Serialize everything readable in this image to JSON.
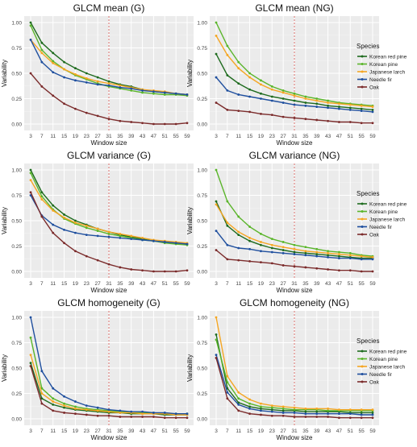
{
  "figure": {
    "legend_title": "Species",
    "species": [
      {
        "name": "Korean red pine",
        "color": "#1e6b1e"
      },
      {
        "name": "Korean pine",
        "color": "#5ab52a"
      },
      {
        "name": "Japanese larch",
        "color": "#f5a623"
      },
      {
        "name": "Needle fir",
        "color": "#1f4f9e"
      },
      {
        "name": "Oak",
        "color": "#7b2b2b"
      }
    ],
    "reference_line_x": 31,
    "reference_line_color": "#d9534f",
    "panel_background": "#ebebeb"
  },
  "chart_data": [
    {
      "type": "line",
      "title": "GLCM mean (G)",
      "xlabel": "Window size",
      "ylabel": "Variability",
      "x": [
        3,
        7,
        11,
        15,
        19,
        23,
        27,
        31,
        35,
        39,
        43,
        47,
        51,
        55,
        59
      ],
      "xticks": [
        "3",
        "7",
        "11",
        "15",
        "19",
        "23",
        "27",
        "31",
        "35",
        "39",
        "43",
        "47",
        "51",
        "55",
        "59"
      ],
      "yticks": [
        "0.00",
        "0.25",
        "0.50",
        "0.75",
        "1.00"
      ],
      "ylim": [
        0,
        1
      ],
      "grid": true,
      "series": [
        {
          "name": "Korean red pine",
          "values": [
            1.0,
            0.8,
            0.7,
            0.61,
            0.55,
            0.5,
            0.46,
            0.42,
            0.39,
            0.37,
            0.34,
            0.32,
            0.31,
            0.3,
            0.29
          ]
        },
        {
          "name": "Korean pine",
          "values": [
            0.97,
            0.73,
            0.62,
            0.54,
            0.48,
            0.44,
            0.4,
            0.37,
            0.35,
            0.33,
            0.31,
            0.3,
            0.29,
            0.29,
            0.28
          ]
        },
        {
          "name": "Japanese larch",
          "values": [
            0.83,
            0.7,
            0.6,
            0.54,
            0.49,
            0.45,
            0.42,
            0.4,
            0.38,
            0.36,
            0.34,
            0.33,
            0.32,
            0.3,
            0.29
          ]
        },
        {
          "name": "Needle fir",
          "values": [
            0.83,
            0.61,
            0.51,
            0.46,
            0.43,
            0.41,
            0.39,
            0.38,
            0.36,
            0.35,
            0.33,
            0.32,
            0.31,
            0.3,
            0.29
          ]
        },
        {
          "name": "Oak",
          "values": [
            0.5,
            0.37,
            0.28,
            0.2,
            0.15,
            0.11,
            0.08,
            0.05,
            0.03,
            0.02,
            0.01,
            0.0,
            0.0,
            0.0,
            0.01
          ]
        }
      ]
    },
    {
      "type": "line",
      "title": "GLCM mean (NG)",
      "xlabel": "Window size",
      "ylabel": "Variability",
      "x": [
        3,
        7,
        11,
        15,
        19,
        23,
        27,
        31,
        35,
        39,
        43,
        47,
        51,
        55,
        59
      ],
      "xticks": [
        "3",
        "7",
        "11",
        "15",
        "19",
        "23",
        "27",
        "31",
        "35",
        "39",
        "43",
        "47",
        "51",
        "55",
        "59"
      ],
      "yticks": [
        "0.00",
        "0.25",
        "0.50",
        "0.75",
        "1.00"
      ],
      "ylim": [
        0,
        1
      ],
      "grid": true,
      "series": [
        {
          "name": "Korean red pine",
          "values": [
            0.69,
            0.48,
            0.4,
            0.34,
            0.3,
            0.27,
            0.25,
            0.23,
            0.21,
            0.2,
            0.18,
            0.17,
            0.16,
            0.15,
            0.14
          ]
        },
        {
          "name": "Korean pine",
          "values": [
            1.0,
            0.77,
            0.61,
            0.5,
            0.43,
            0.37,
            0.33,
            0.3,
            0.27,
            0.25,
            0.23,
            0.21,
            0.2,
            0.19,
            0.18
          ]
        },
        {
          "name": "Japanese larch",
          "values": [
            0.87,
            0.68,
            0.55,
            0.46,
            0.39,
            0.34,
            0.31,
            0.28,
            0.25,
            0.23,
            0.21,
            0.2,
            0.19,
            0.18,
            0.17
          ]
        },
        {
          "name": "Needle fir",
          "values": [
            0.46,
            0.33,
            0.29,
            0.27,
            0.25,
            0.23,
            0.21,
            0.19,
            0.18,
            0.17,
            0.16,
            0.15,
            0.14,
            0.13,
            0.12
          ]
        },
        {
          "name": "Oak",
          "values": [
            0.21,
            0.14,
            0.13,
            0.12,
            0.1,
            0.09,
            0.07,
            0.06,
            0.05,
            0.04,
            0.03,
            0.02,
            0.02,
            0.01,
            0.01
          ]
        }
      ]
    },
    {
      "type": "line",
      "title": "GLCM variance (G)",
      "xlabel": "Window size",
      "ylabel": "Variability",
      "x": [
        3,
        7,
        11,
        15,
        19,
        23,
        27,
        31,
        35,
        39,
        43,
        47,
        51,
        55,
        59
      ],
      "xticks": [
        "3",
        "7",
        "11",
        "15",
        "19",
        "23",
        "27",
        "31",
        "35",
        "39",
        "43",
        "47",
        "51",
        "55",
        "59"
      ],
      "yticks": [
        "0.00",
        "0.25",
        "0.50",
        "0.75",
        "1.00"
      ],
      "ylim": [
        0,
        1
      ],
      "grid": true,
      "series": [
        {
          "name": "Korean red pine",
          "values": [
            1.0,
            0.78,
            0.65,
            0.56,
            0.5,
            0.46,
            0.42,
            0.39,
            0.36,
            0.34,
            0.32,
            0.3,
            0.29,
            0.28,
            0.27
          ]
        },
        {
          "name": "Korean pine",
          "values": [
            0.97,
            0.74,
            0.61,
            0.52,
            0.47,
            0.43,
            0.4,
            0.37,
            0.35,
            0.33,
            0.31,
            0.3,
            0.28,
            0.27,
            0.26
          ]
        },
        {
          "name": "Japanese larch",
          "values": [
            0.9,
            0.71,
            0.6,
            0.53,
            0.48,
            0.45,
            0.42,
            0.39,
            0.37,
            0.35,
            0.33,
            0.31,
            0.3,
            0.29,
            0.28
          ]
        },
        {
          "name": "Needle fir",
          "values": [
            0.75,
            0.55,
            0.46,
            0.41,
            0.38,
            0.36,
            0.35,
            0.34,
            0.33,
            0.32,
            0.31,
            0.3,
            0.29,
            0.28,
            0.27
          ]
        },
        {
          "name": "Oak",
          "values": [
            0.78,
            0.54,
            0.38,
            0.28,
            0.2,
            0.15,
            0.11,
            0.07,
            0.04,
            0.02,
            0.01,
            0.0,
            0.0,
            0.0,
            0.01
          ]
        }
      ]
    },
    {
      "type": "line",
      "title": "GLCM variance (NG)",
      "xlabel": "Window size",
      "ylabel": "Variability",
      "x": [
        3,
        7,
        11,
        15,
        19,
        23,
        27,
        31,
        35,
        39,
        43,
        47,
        51,
        55,
        59
      ],
      "xticks": [
        "3",
        "7",
        "11",
        "15",
        "19",
        "23",
        "27",
        "31",
        "35",
        "39",
        "43",
        "47",
        "51",
        "55",
        "59"
      ],
      "yticks": [
        "0.00",
        "0.25",
        "0.50",
        "0.75",
        "1.00"
      ],
      "ylim": [
        0,
        1
      ],
      "grid": true,
      "series": [
        {
          "name": "Korean red pine",
          "values": [
            0.69,
            0.45,
            0.36,
            0.3,
            0.26,
            0.23,
            0.21,
            0.19,
            0.18,
            0.17,
            0.16,
            0.15,
            0.14,
            0.13,
            0.13
          ]
        },
        {
          "name": "Korean pine",
          "values": [
            1.0,
            0.69,
            0.54,
            0.44,
            0.37,
            0.32,
            0.29,
            0.26,
            0.24,
            0.22,
            0.2,
            0.19,
            0.18,
            0.16,
            0.15
          ]
        },
        {
          "name": "Japanese larch",
          "values": [
            0.66,
            0.48,
            0.39,
            0.33,
            0.29,
            0.26,
            0.24,
            0.22,
            0.2,
            0.19,
            0.18,
            0.17,
            0.16,
            0.15,
            0.14
          ]
        },
        {
          "name": "Needle fir",
          "values": [
            0.4,
            0.26,
            0.23,
            0.22,
            0.2,
            0.19,
            0.18,
            0.17,
            0.16,
            0.15,
            0.14,
            0.13,
            0.13,
            0.12,
            0.12
          ]
        },
        {
          "name": "Oak",
          "values": [
            0.21,
            0.12,
            0.11,
            0.1,
            0.09,
            0.08,
            0.06,
            0.05,
            0.04,
            0.03,
            0.02,
            0.01,
            0.01,
            0.0,
            0.0
          ]
        }
      ]
    },
    {
      "type": "line",
      "title": "GLCM homogeneity (G)",
      "xlabel": "Window size",
      "ylabel": "Variability",
      "x": [
        3,
        7,
        11,
        15,
        19,
        23,
        27,
        31,
        35,
        39,
        43,
        47,
        51,
        55,
        59
      ],
      "xticks": [
        "3",
        "7",
        "11",
        "15",
        "19",
        "23",
        "27",
        "31",
        "35",
        "39",
        "43",
        "47",
        "51",
        "55",
        "59"
      ],
      "yticks": [
        "0.00",
        "0.25",
        "0.50",
        "0.75",
        "1.00"
      ],
      "ylim": [
        0,
        1
      ],
      "grid": true,
      "series": [
        {
          "name": "Korean red pine",
          "values": [
            0.55,
            0.2,
            0.14,
            0.11,
            0.09,
            0.08,
            0.07,
            0.06,
            0.06,
            0.05,
            0.05,
            0.05,
            0.04,
            0.04,
            0.04
          ]
        },
        {
          "name": "Korean pine",
          "values": [
            0.8,
            0.3,
            0.2,
            0.15,
            0.12,
            0.1,
            0.09,
            0.08,
            0.07,
            0.06,
            0.06,
            0.06,
            0.05,
            0.05,
            0.05
          ]
        },
        {
          "name": "Japanese larch",
          "values": [
            0.63,
            0.25,
            0.17,
            0.13,
            0.1,
            0.09,
            0.08,
            0.07,
            0.06,
            0.06,
            0.05,
            0.05,
            0.05,
            0.04,
            0.04
          ]
        },
        {
          "name": "Needle fir",
          "values": [
            1.0,
            0.47,
            0.3,
            0.22,
            0.17,
            0.13,
            0.11,
            0.09,
            0.08,
            0.07,
            0.07,
            0.06,
            0.06,
            0.05,
            0.05
          ]
        },
        {
          "name": "Oak",
          "values": [
            0.52,
            0.15,
            0.08,
            0.06,
            0.05,
            0.04,
            0.03,
            0.03,
            0.02,
            0.02,
            0.02,
            0.02,
            0.01,
            0.01,
            0.01
          ]
        }
      ]
    },
    {
      "type": "line",
      "title": "GLCM homogeneity (NG)",
      "xlabel": "Window size",
      "ylabel": "Variability",
      "x": [
        3,
        7,
        11,
        15,
        19,
        23,
        27,
        31,
        35,
        39,
        43,
        47,
        51,
        55,
        59
      ],
      "xticks": [
        "3",
        "7",
        "11",
        "15",
        "19",
        "23",
        "27",
        "31",
        "35",
        "39",
        "43",
        "47",
        "51",
        "55",
        "59"
      ],
      "yticks": [
        "0.00",
        "0.25",
        "0.50",
        "0.75",
        "1.00"
      ],
      "ylim": [
        0,
        1
      ],
      "grid": true,
      "series": [
        {
          "name": "Korean red pine",
          "values": [
            0.83,
            0.3,
            0.16,
            0.12,
            0.1,
            0.09,
            0.08,
            0.08,
            0.07,
            0.07,
            0.07,
            0.07,
            0.06,
            0.06,
            0.06
          ]
        },
        {
          "name": "Korean pine",
          "values": [
            0.78,
            0.36,
            0.2,
            0.15,
            0.12,
            0.11,
            0.1,
            0.09,
            0.09,
            0.09,
            0.08,
            0.08,
            0.08,
            0.08,
            0.08
          ]
        },
        {
          "name": "Japanese larch",
          "values": [
            1.0,
            0.42,
            0.26,
            0.19,
            0.15,
            0.13,
            0.12,
            0.11,
            0.1,
            0.1,
            0.1,
            0.09,
            0.09,
            0.09,
            0.09
          ]
        },
        {
          "name": "Needle fir",
          "values": [
            0.63,
            0.26,
            0.14,
            0.1,
            0.08,
            0.07,
            0.06,
            0.06,
            0.05,
            0.05,
            0.05,
            0.05,
            0.05,
            0.04,
            0.04
          ]
        },
        {
          "name": "Oak",
          "values": [
            0.6,
            0.2,
            0.08,
            0.05,
            0.04,
            0.03,
            0.03,
            0.02,
            0.02,
            0.02,
            0.02,
            0.01,
            0.01,
            0.01,
            0.01
          ]
        }
      ]
    }
  ]
}
